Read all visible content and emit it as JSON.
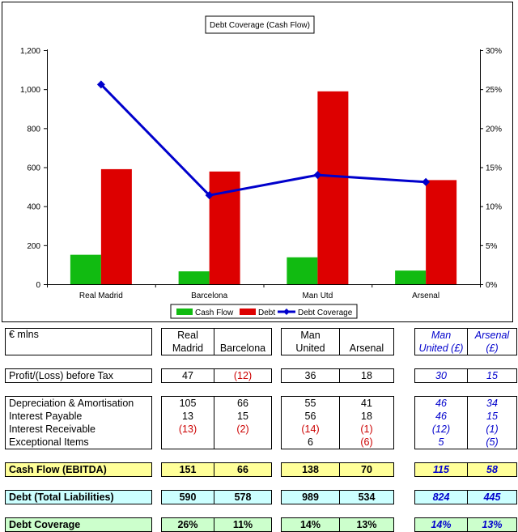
{
  "chart_data": {
    "type": "bar",
    "title": "Debt Coverage (Cash Flow)",
    "categories": [
      "Real Madrid",
      "Barcelona",
      "Man Utd",
      "Arsenal"
    ],
    "series": [
      {
        "name": "Cash Flow",
        "type": "bar",
        "axis": "left",
        "color": "#11bb11",
        "values": [
          151,
          66,
          138,
          70
        ]
      },
      {
        "name": "Debt",
        "type": "bar",
        "axis": "left",
        "color": "#dd0000",
        "values": [
          590,
          578,
          989,
          534
        ]
      },
      {
        "name": "Debt Coverage",
        "type": "line",
        "axis": "right",
        "color": "#0000cc",
        "values": [
          25.6,
          11.4,
          14.0,
          13.1
        ]
      }
    ],
    "ylim": [
      0,
      1200
    ],
    "y_ticks": [
      "0",
      "200",
      "400",
      "600",
      "800",
      "1,000",
      "1,200"
    ],
    "y2lim": [
      0,
      30
    ],
    "y2_ticks": [
      "0%",
      "5%",
      "10%",
      "15%",
      "20%",
      "25%",
      "30%"
    ],
    "grid": false,
    "legend_position": "bottom"
  },
  "table": {
    "unit_label": "€ mlns",
    "headers": [
      [
        "Real",
        "Madrid"
      ],
      [
        "",
        "Barcelona"
      ],
      [
        "Man",
        "United"
      ],
      [
        "",
        "Arsenal"
      ],
      [
        "Man",
        "United (£)"
      ],
      [
        "Arsenal",
        "(£)"
      ]
    ],
    "profit": {
      "label": "Profit/(Loss) before Tax",
      "values": [
        "47",
        "(12)",
        "36",
        "18",
        "30",
        "15"
      ]
    },
    "details": [
      {
        "label": "Depreciation & Amortisation",
        "values": [
          "105",
          "66",
          "55",
          "41",
          "46",
          "34"
        ]
      },
      {
        "label": "Interest Payable",
        "values": [
          "13",
          "15",
          "56",
          "18",
          "46",
          "15"
        ]
      },
      {
        "label": "Interest Receivable",
        "values": [
          "(13)",
          "(2)",
          "(14)",
          "(1)",
          "(12)",
          "(1)"
        ]
      },
      {
        "label": "Exceptional Items",
        "values": [
          "",
          "",
          "6",
          "(6)",
          "5",
          "(5)"
        ]
      }
    ],
    "cash_flow": {
      "label": "Cash Flow (EBITDA)",
      "values": [
        "151",
        "66",
        "138",
        "70",
        "115",
        "58"
      ]
    },
    "debt": {
      "label": "Debt (Total Liabilities)",
      "values": [
        "590",
        "578",
        "989",
        "534",
        "824",
        "445"
      ]
    },
    "coverage": {
      "label": "Debt Coverage",
      "values": [
        "26%",
        "11%",
        "14%",
        "13%",
        "14%",
        "13%"
      ]
    }
  }
}
